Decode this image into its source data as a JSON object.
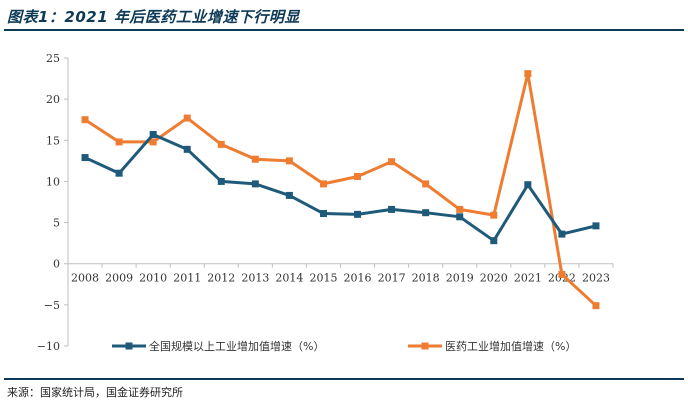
{
  "header": {
    "title": "图表1：2021 年后医药工业增速下行明显"
  },
  "footer": {
    "source": "来源：国家统计局，国金证券研究所"
  },
  "chart_data": {
    "type": "line",
    "title": "图表1：2021 年后医药工业增速下行明显",
    "categories": [
      "2008",
      "2009",
      "2010",
      "2011",
      "2012",
      "2013",
      "2014",
      "2015",
      "2016",
      "2017",
      "2018",
      "2019",
      "2020",
      "2021",
      "2022",
      "2023"
    ],
    "y_ticks": [
      "25",
      "20",
      "15",
      "10",
      "5",
      "0",
      "−5",
      "−10"
    ],
    "ylim": [
      -10,
      25
    ],
    "grid": false,
    "legend_position": "bottom",
    "series": [
      {
        "name": "全国规模以上工业增加值增速（%）",
        "color": "#1f5a7a",
        "values": [
          12.9,
          11.0,
          15.7,
          13.9,
          10.0,
          9.7,
          8.3,
          6.1,
          6.0,
          6.6,
          6.2,
          5.7,
          2.8,
          9.6,
          3.6,
          4.6
        ]
      },
      {
        "name": "医药工业增加值增速（%）",
        "color": "#ee7d31",
        "values": [
          17.5,
          14.8,
          14.8,
          17.7,
          14.5,
          12.7,
          12.5,
          9.7,
          10.6,
          12.4,
          9.7,
          6.6,
          5.9,
          23.1,
          -1.3,
          -5.1
        ]
      }
    ]
  }
}
